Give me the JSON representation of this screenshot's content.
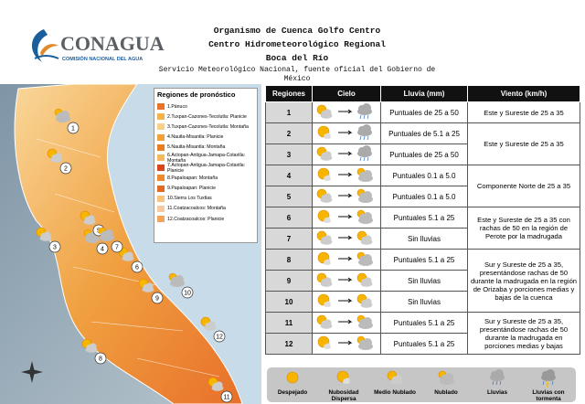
{
  "header": {
    "logo": "CONAGUA",
    "logo_sub": "COMISIÓN NACIONAL DEL AGUA",
    "lines": [
      "Organismo de Cuenca Golfo Centro",
      "Centro Hidrometeorológico Regional",
      "Boca del Río"
    ],
    "subtitle": "Servicio Meteorológico Nacional, fuente oficial del Gobierno de México"
  },
  "map": {
    "legend_title": "Regiones de pronóstico",
    "regions": [
      {
        "label": "1.Pánuco",
        "color": "#e8732a"
      },
      {
        "label": "2.Tuxpan-Cazones-Tecolutla: Planicie",
        "color": "#f5b24a"
      },
      {
        "label": "3.Tuxpan-Cazones-Tecolutla: Montaña",
        "color": "#f9d08a"
      },
      {
        "label": "4.Nautla-Misantla: Planicie",
        "color": "#f0a13a"
      },
      {
        "label": "5.Nautla-Misantla: Montaña",
        "color": "#e87e22"
      },
      {
        "label": "6.Actopan-Antigua-Jamapa-Cotaxtla: Montaña",
        "color": "#f5b85e"
      },
      {
        "label": "7.Actopan-Antigua-Jamapa-Cotaxtla: Planicie",
        "color": "#d9461e"
      },
      {
        "label": "8.Papaloapan: Montaña",
        "color": "#ee8a2c"
      },
      {
        "label": "9.Papaloapan: Planicie",
        "color": "#e36a20"
      },
      {
        "label": "10.Sierra Los Tuxtlas",
        "color": "#f7c27a"
      },
      {
        "label": "11.Coatzacoalcos: Montaña",
        "color": "#f6c9a0"
      },
      {
        "label": "12.Coatzacoalcos: Planicie",
        "color": "#f2a55a"
      }
    ],
    "markers": [
      "1",
      "2",
      "3",
      "4",
      "5",
      "6",
      "7",
      "8",
      "9",
      "10",
      "11",
      "12"
    ]
  },
  "table": {
    "columns": [
      "Regiones",
      "Cielo",
      "Lluvia (mm)",
      "Viento (km/h)"
    ],
    "rows": [
      {
        "region": "1",
        "lluvia": "Puntuales de 25 a 50"
      },
      {
        "region": "2",
        "lluvia": "Puntuales de 5.1 a 25"
      },
      {
        "region": "3",
        "lluvia": "Puntuales de 25 a 50"
      },
      {
        "region": "4",
        "lluvia": "Puntuales 0.1 a 5.0"
      },
      {
        "region": "5",
        "lluvia": "Puntuales 0.1 a 5.0"
      },
      {
        "region": "6",
        "lluvia": "Puntuales 5.1 a 25"
      },
      {
        "region": "7",
        "lluvia": "Sin lluvias"
      },
      {
        "region": "8",
        "lluvia": "Puntuales 5.1 a 25"
      },
      {
        "region": "9",
        "lluvia": "Sin lluvias"
      },
      {
        "region": "10",
        "lluvia": "Sin lluvias"
      },
      {
        "region": "11",
        "lluvia": "Puntuales 5.1 a 25"
      },
      {
        "region": "12",
        "lluvia": "Puntuales 5.1 a 25"
      }
    ],
    "viento": [
      "Este y Sureste de 25 a 35",
      "Este y Sureste de 25 a 35",
      "Componente Norte de 25 a 35",
      "Este y Sureste de 25 a 35 con rachas de 50 en la región de Perote por la madrugada",
      "Sur y Sureste de 25 a 35, presentándose rachas de 50 durante la madrugada en la región de Orizaba y porciones medias y bajas de la cuenca",
      "Sur y Sureste de 25 a 35, presentándose rachas de 50 durante la madrugada en porciones medias y bajas"
    ]
  },
  "legend": [
    "Despejado",
    "Nubosidad Dispersa",
    "Medio Nublado",
    "Nublado",
    "Lluvias",
    "Lluvias con tormenta"
  ]
}
